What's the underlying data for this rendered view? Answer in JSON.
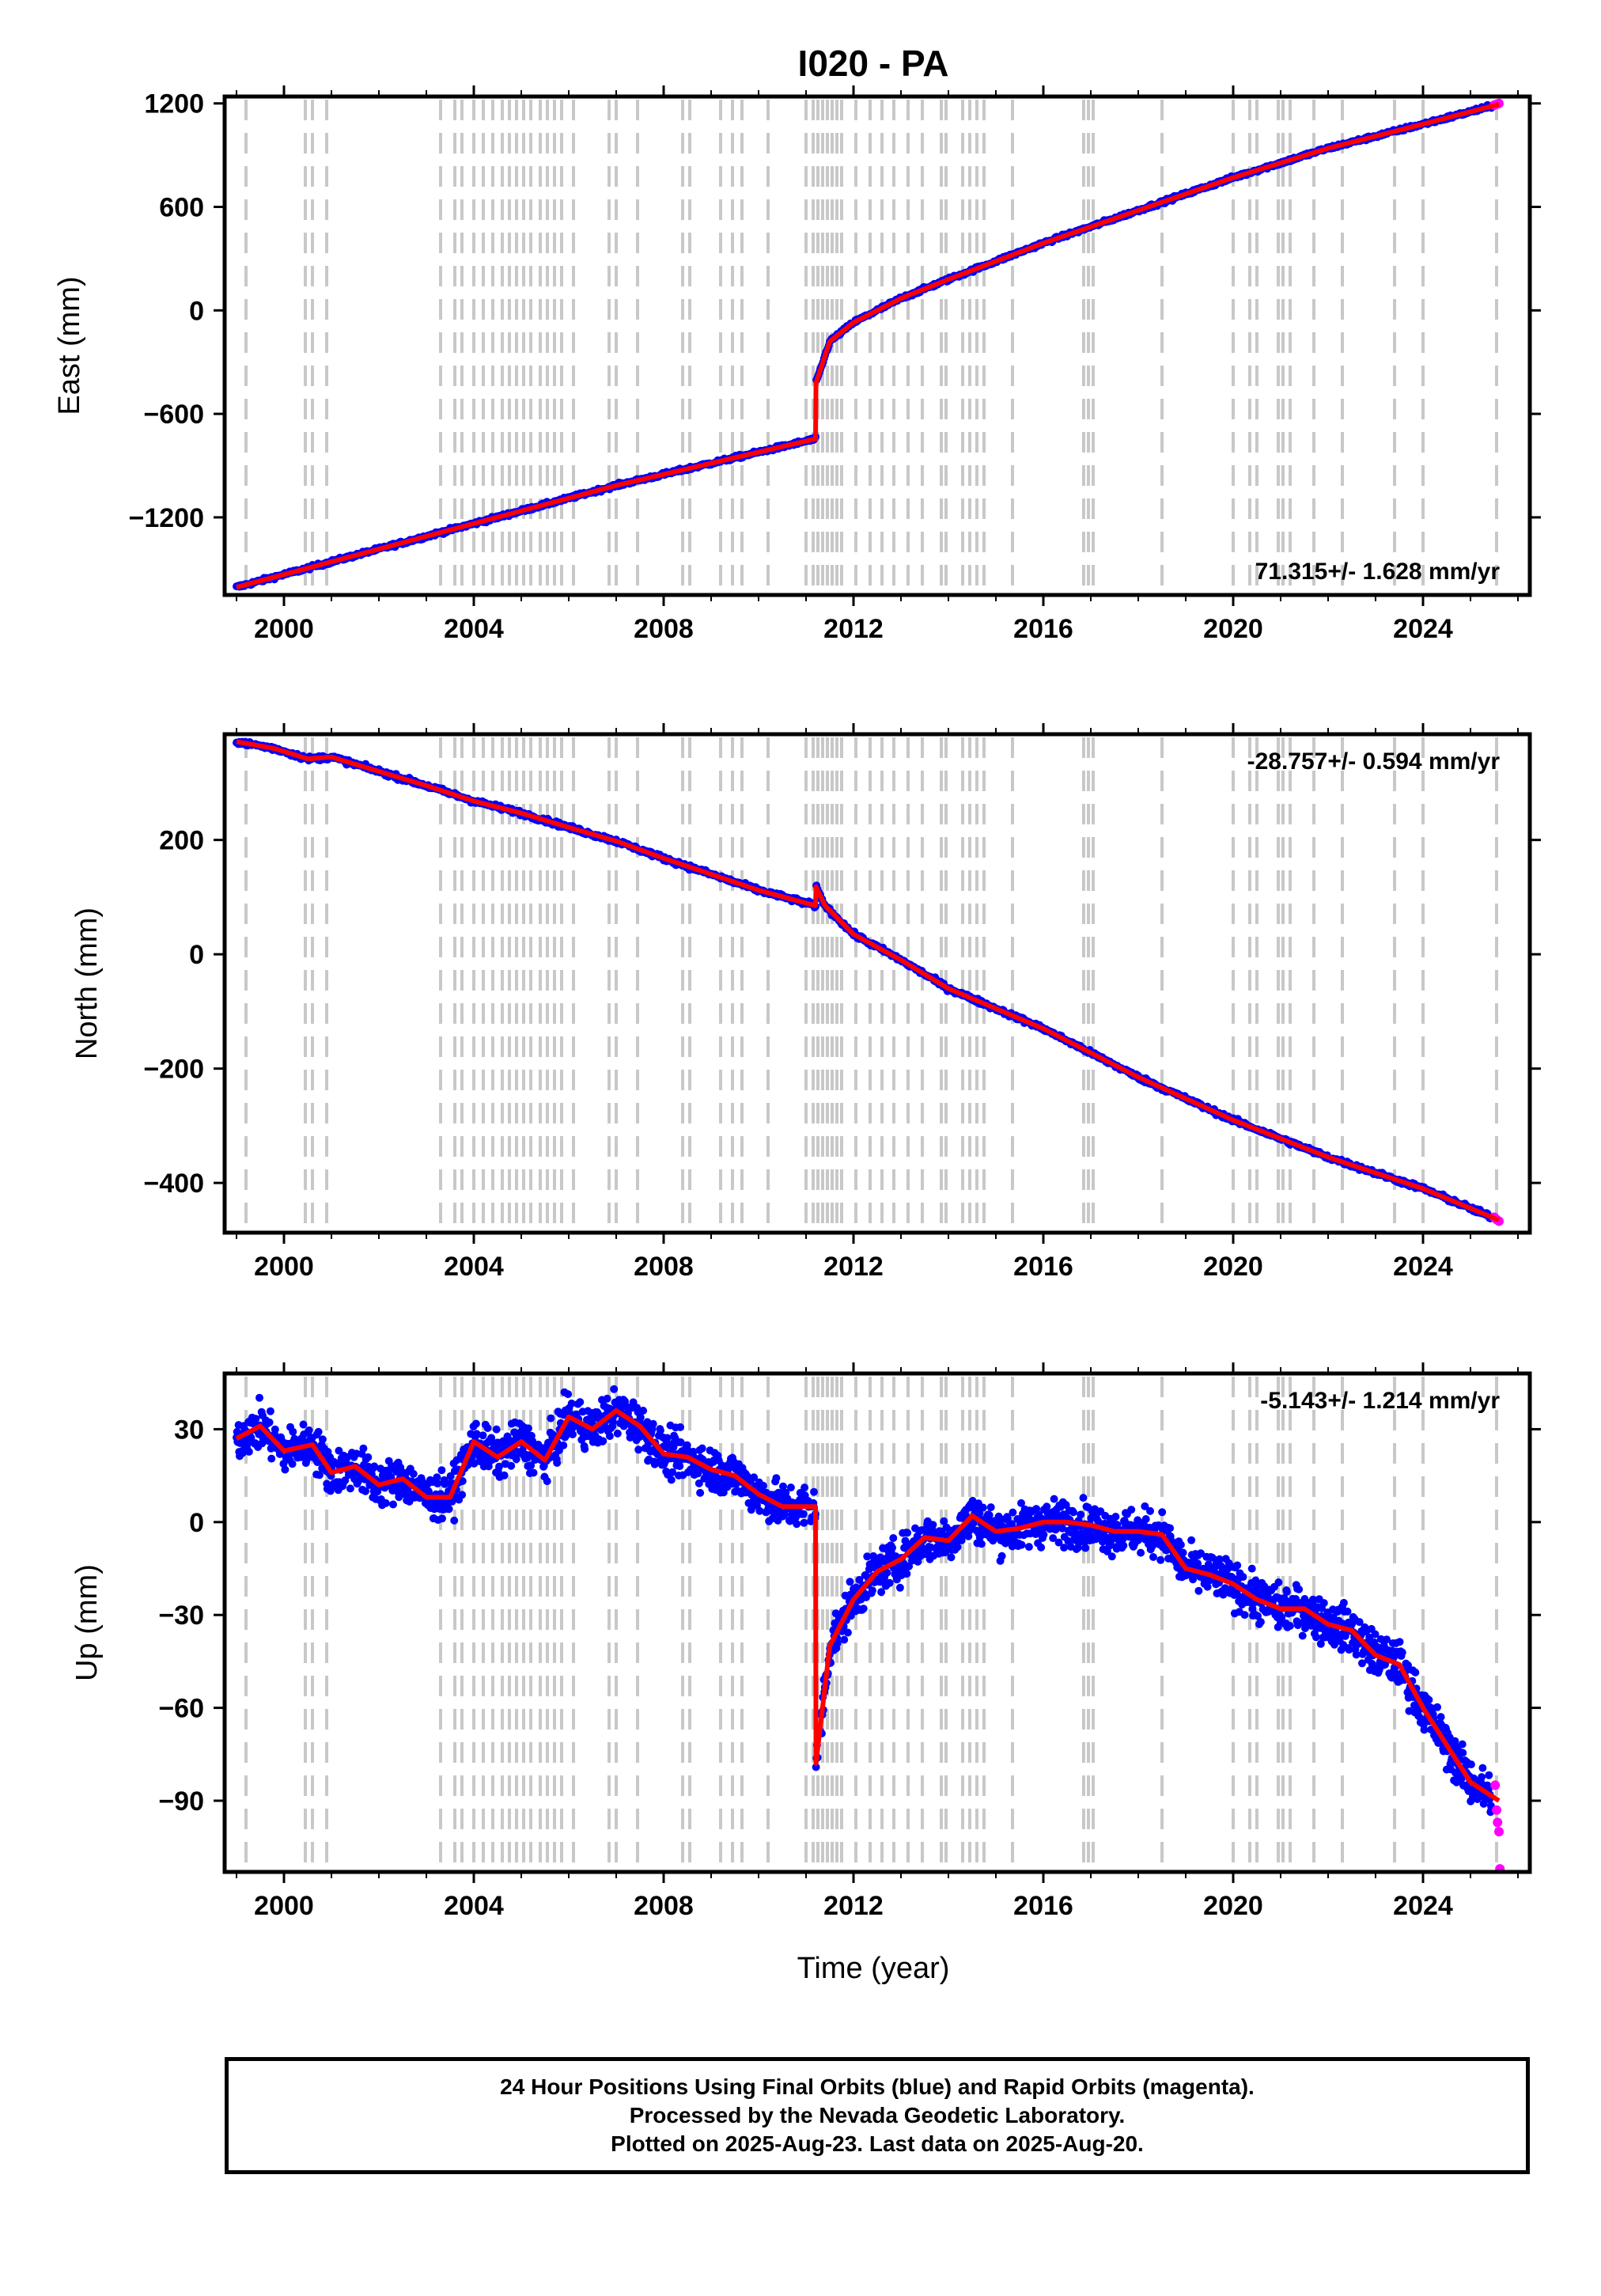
{
  "chart_data": {
    "type": "scatter",
    "title": "I020 - PA",
    "xlabel": "Time (year)",
    "xlim": [
      1998.75,
      2026.25
    ],
    "xticks": [
      2000,
      2004,
      2008,
      2012,
      2016,
      2020,
      2024
    ],
    "colors": {
      "final_orbits": "#0000ff",
      "rapid_orbits": "#ff00ff",
      "model_fit": "#ff0000",
      "event_lines": "#c8c8c8"
    },
    "event_lines": [
      1999.2,
      2000.45,
      2000.6,
      2000.9,
      2003.3,
      2003.6,
      2003.75,
      2004.0,
      2004.2,
      2004.4,
      2004.6,
      2004.75,
      2004.9,
      2005.05,
      2005.2,
      2005.4,
      2005.55,
      2005.7,
      2005.85,
      2006.1,
      2006.85,
      2007.0,
      2007.45,
      2008.4,
      2008.55,
      2009.2,
      2009.45,
      2009.65,
      2010.2,
      2011.0,
      2011.15,
      2011.25,
      2011.35,
      2011.45,
      2011.55,
      2011.65,
      2011.75,
      2012.05,
      2012.35,
      2012.6,
      2012.85,
      2013.15,
      2013.45,
      2013.85,
      2013.95,
      2014.3,
      2014.45,
      2014.6,
      2014.75,
      2015.35,
      2016.85,
      2016.95,
      2017.05,
      2018.5,
      2020.0,
      2020.35,
      2020.5,
      2020.95,
      2021.05,
      2021.2,
      2021.7,
      2022.3,
      2023.4,
      2024.0,
      2025.55
    ],
    "panels": [
      {
        "ylabel": "East (mm)",
        "ylim": [
          -1650,
          1240
        ],
        "yticks": [
          -1200,
          -600,
          0,
          600,
          1200
        ],
        "rate_text": "71.315+/- 1.628 mm/yr",
        "rate_position": "bottom-right",
        "fit_x": [
          1999.0,
          2003.0,
          2007.0,
          2011.2,
          2011.21,
          2011.5,
          2012.0,
          2013.0,
          2014.0,
          2016.0,
          2018.0,
          2020.0,
          2022.0,
          2024.0,
          2025.6
        ],
        "fit_y": [
          -1605,
          -1310,
          -1015,
          -745,
          -420,
          -180,
          -70,
          70,
          180,
          390,
          580,
          770,
          940,
          1080,
          1195
        ],
        "scatter_noise": 10,
        "rapid_x": [
          2025.5,
          2025.55,
          2025.6
        ],
        "rapid_y": [
          1190,
          1195,
          1200
        ]
      },
      {
        "ylabel": "North (mm)",
        "ylim": [
          -487,
          385
        ],
        "yticks": [
          -400,
          -200,
          0,
          200
        ],
        "rate_text": "-28.757+/- 0.594 mm/yr",
        "rate_position": "top-right",
        "fit_x": [
          1999.0,
          1999.8,
          2000.5,
          2001.0,
          2002.0,
          2003.0,
          2004.0,
          2005.0,
          2006.0,
          2007.0,
          2008.0,
          2009.0,
          2010.0,
          2011.2,
          2011.21,
          2011.4,
          2011.7,
          2012.0,
          2013.0,
          2014.0,
          2016.0,
          2018.0,
          2020.0,
          2022.0,
          2024.0,
          2025.6
        ],
        "fit_y": [
          372,
          360,
          342,
          345,
          320,
          295,
          268,
          247,
          222,
          198,
          168,
          140,
          112,
          85,
          118,
          85,
          60,
          35,
          -10,
          -60,
          -130,
          -215,
          -290,
          -355,
          -410,
          -465
        ],
        "scatter_noise": 4,
        "rapid_x": [
          2025.5,
          2025.55,
          2025.6
        ],
        "rapid_y": [
          -460,
          -464,
          -467
        ]
      },
      {
        "ylabel": "Up (mm)",
        "ylim": [
          -113,
          48
        ],
        "yticks": [
          -90,
          -60,
          -30,
          0,
          30
        ],
        "rate_text": "-5.143+/- 1.214 mm/yr",
        "rate_position": "top-right",
        "fit_x": [
          1999.0,
          1999.5,
          2000.0,
          2000.6,
          2001.0,
          2001.5,
          2002.0,
          2002.5,
          2003.0,
          2003.5,
          2004.0,
          2004.5,
          2005.0,
          2005.5,
          2006.0,
          2006.5,
          2007.0,
          2007.5,
          2008.0,
          2008.5,
          2009.0,
          2009.5,
          2010.0,
          2010.5,
          2011.2,
          2011.21,
          2011.5,
          2012.0,
          2012.5,
          2013.0,
          2013.5,
          2014.0,
          2014.5,
          2015.0,
          2015.5,
          2016.0,
          2016.5,
          2017.0,
          2017.5,
          2018.0,
          2018.5,
          2019.0,
          2019.5,
          2020.0,
          2020.5,
          2021.0,
          2021.5,
          2022.0,
          2022.5,
          2023.0,
          2023.5,
          2024.0,
          2024.5,
          2025.0,
          2025.6
        ],
        "fit_y": [
          27,
          31,
          23,
          25,
          16,
          18,
          12,
          14,
          8,
          8,
          26,
          21,
          26,
          20,
          34,
          30,
          36,
          31,
          22,
          21,
          17,
          15,
          9,
          5,
          5,
          -78,
          -40,
          -25,
          -16,
          -12,
          -5,
          -6,
          2,
          -3,
          -2,
          0,
          0,
          -1,
          -3,
          -3,
          -4,
          -15,
          -17,
          -20,
          -25,
          -28,
          -28,
          -33,
          -35,
          -43,
          -46,
          -60,
          -72,
          -84,
          -90
        ],
        "scatter_noise": 7,
        "rapid_x": [
          2025.52,
          2025.55,
          2025.57,
          2025.6,
          2025.62
        ],
        "rapid_y": [
          -85,
          -93,
          -97,
          -100,
          -112
        ]
      }
    ]
  },
  "footer": {
    "line1": "24 Hour Positions Using Final Orbits (blue) and Rapid Orbits (magenta).",
    "line2": "Processed by the Nevada Geodetic Laboratory.",
    "line3": "Plotted on 2025-Aug-23. Last data on 2025-Aug-20."
  }
}
